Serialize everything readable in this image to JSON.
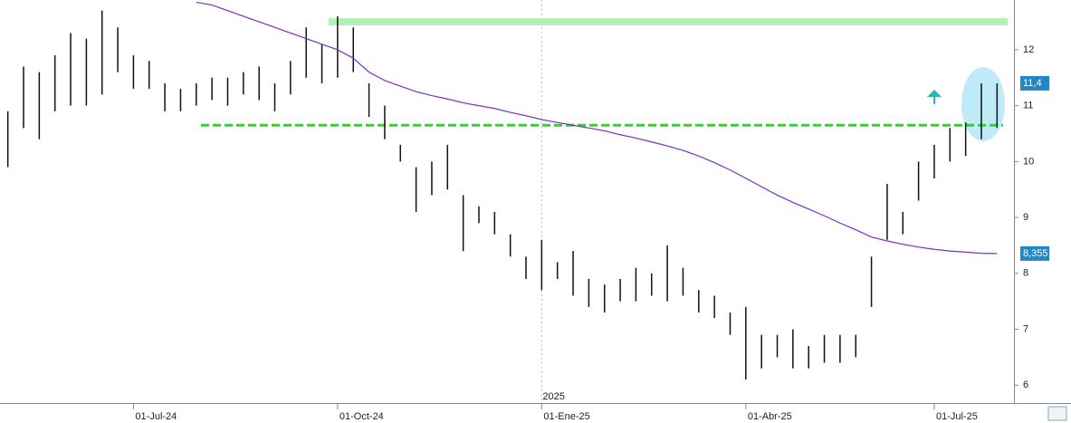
{
  "chart_data": {
    "type": "ohlc",
    "categories": [
      null,
      null,
      null,
      null,
      null,
      null,
      null,
      null,
      "01-Jul-24",
      null,
      null,
      null,
      null,
      null,
      null,
      null,
      null,
      null,
      null,
      null,
      null,
      "01-Oct-24",
      null,
      null,
      null,
      null,
      null,
      null,
      null,
      null,
      null,
      null,
      null,
      null,
      "01-Ene-25",
      null,
      null,
      null,
      null,
      null,
      null,
      null,
      null,
      null,
      null,
      null,
      null,
      "01-Abr-25",
      null,
      null,
      null,
      null,
      null,
      null,
      null,
      null,
      null,
      null,
      null,
      "01-Jul-25",
      null,
      null,
      null,
      null
    ],
    "series": [
      {
        "type": "hilo",
        "color": "#111111",
        "high": [
          10.9,
          11.7,
          11.6,
          11.9,
          12.3,
          12.2,
          12.7,
          12.4,
          11.9,
          11.8,
          11.4,
          11.3,
          11.4,
          11.5,
          11.5,
          11.6,
          11.7,
          11.4,
          11.8,
          12.4,
          12.1,
          12.6,
          12.4,
          11.4,
          11.0,
          10.3,
          9.9,
          10.0,
          10.3,
          9.4,
          9.2,
          9.1,
          8.7,
          8.3,
          8.6,
          8.2,
          8.4,
          7.9,
          7.8,
          7.9,
          8.1,
          8.0,
          8.5,
          8.1,
          7.7,
          7.6,
          7.3,
          7.4,
          6.9,
          6.9,
          7.0,
          6.7,
          6.9,
          6.9,
          6.9,
          8.3,
          9.6,
          9.1,
          10.0,
          10.3,
          10.6,
          10.7,
          11.4,
          11.4
        ],
        "low": [
          9.9,
          10.6,
          10.4,
          10.9,
          11.0,
          11.0,
          11.2,
          11.6,
          11.3,
          11.3,
          10.9,
          10.9,
          11.0,
          11.1,
          11.0,
          11.2,
          11.1,
          10.9,
          11.2,
          11.5,
          11.4,
          11.5,
          11.6,
          10.8,
          10.4,
          10.0,
          9.1,
          9.4,
          9.5,
          8.4,
          8.9,
          8.7,
          8.3,
          7.9,
          7.7,
          7.9,
          7.6,
          7.4,
          7.3,
          7.5,
          7.5,
          7.6,
          7.5,
          7.6,
          7.3,
          7.2,
          6.9,
          6.1,
          6.3,
          6.5,
          6.3,
          6.3,
          6.4,
          6.4,
          6.5,
          7.4,
          8.6,
          8.7,
          9.3,
          9.7,
          10.0,
          10.1,
          10.4,
          10.6
        ],
        "last": 11.4,
        "last_label": "11,4",
        "label_color": "#1e88c8"
      },
      {
        "type": "line",
        "color": "#7a2fc0",
        "values": [
          null,
          null,
          null,
          null,
          null,
          null,
          null,
          null,
          null,
          null,
          null,
          null,
          12.85,
          12.8,
          12.7,
          12.6,
          12.5,
          12.4,
          12.3,
          12.2,
          12.1,
          12.0,
          11.85,
          11.6,
          11.45,
          11.35,
          11.25,
          11.18,
          11.12,
          11.05,
          11.0,
          10.95,
          10.88,
          10.82,
          10.75,
          10.7,
          10.65,
          10.6,
          10.55,
          10.48,
          10.42,
          10.35,
          10.28,
          10.2,
          10.1,
          9.98,
          9.85,
          9.7,
          9.55,
          9.4,
          9.27,
          9.15,
          9.03,
          8.9,
          8.78,
          8.65,
          8.58,
          8.52,
          8.47,
          8.43,
          8.4,
          8.38,
          8.36,
          8.355
        ],
        "last_label": "8,355",
        "label_color": "#1e88c8"
      }
    ],
    "levels": [
      {
        "value": 12.5,
        "color": "#b6f0b6",
        "style": "solid"
      },
      {
        "value": 10.65,
        "color": "#22dd22",
        "style": "dashed"
      }
    ],
    "year_label": "2025",
    "ylim": [
      5.68,
      12.89
    ],
    "yticks": [
      6,
      7,
      8,
      9,
      10,
      11,
      12
    ]
  }
}
